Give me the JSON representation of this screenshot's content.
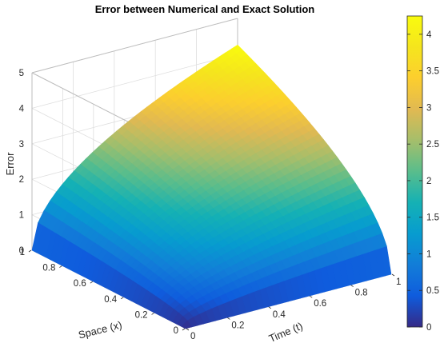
{
  "chart_data": {
    "type": "surface",
    "title": "Error between Numerical and Exact Solution",
    "xlabel": "Time (t)",
    "ylabel": "Space (x)",
    "zlabel": "Error",
    "xlim": [
      0,
      1
    ],
    "ylim": [
      0,
      1
    ],
    "zlim": [
      0,
      5
    ],
    "x_ticks": [
      "0",
      "0.2",
      "0.4",
      "0.6",
      "0.8",
      "1"
    ],
    "y_ticks": [
      "0",
      "0.2",
      "0.4",
      "0.6",
      "0.8",
      "1"
    ],
    "z_ticks": [
      "0",
      "1",
      "2",
      "3",
      "4",
      "5"
    ],
    "colorbar": {
      "colormap": "parula",
      "range": [
        0,
        4.25
      ],
      "ticks": [
        "0",
        "0.5",
        "1",
        "1.5",
        "2",
        "2.5",
        "3",
        "3.5",
        "4"
      ]
    },
    "surface_model": "Error(t,x) ≈ 4.25 · sqrt(t) · sqrt(x)",
    "surface_samples": [
      {
        "t": 0,
        "x": 0,
        "error": 0
      },
      {
        "t": 1,
        "x": 0,
        "error": 0
      },
      {
        "t": 0,
        "x": 1,
        "error": 0
      },
      {
        "t": 0.2,
        "x": 1,
        "error": 1.9
      },
      {
        "t": 1,
        "x": 0.2,
        "error": 1.9
      },
      {
        "t": 0.5,
        "x": 0.5,
        "error": 2.1
      },
      {
        "t": 1,
        "x": 1,
        "error": 4.25
      }
    ],
    "grid": true
  }
}
